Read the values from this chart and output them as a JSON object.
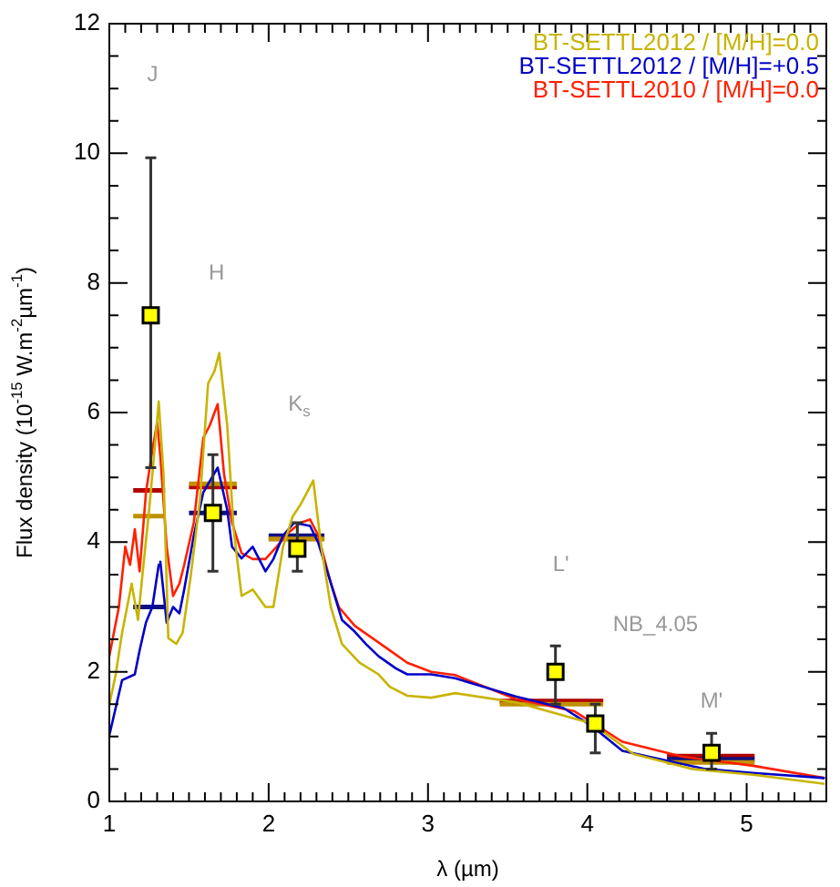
{
  "chart_data": {
    "type": "line",
    "xlabel": "λ (µm)",
    "ylabel": "Flux density (10$^{-15}$ W.m$^{-2}$µm$^{-1}$)",
    "xlim": [
      1,
      5.5
    ],
    "ylim": [
      0,
      12
    ],
    "xticks": [
      1,
      {
        "value": 1.1,
        "label": null
      },
      {
        "value": 1.2,
        "label": null
      },
      {
        "value": 1.3,
        "label": null
      },
      {
        "value": 1.4,
        "label": null
      },
      {
        "value": 1.5,
        "label": null
      },
      {
        "value": 1.6,
        "label": null
      },
      {
        "value": 1.7,
        "label": null
      },
      {
        "value": 1.8,
        "label": null
      },
      {
        "value": 1.9,
        "label": null
      },
      2,
      {
        "value": 2.1,
        "label": null
      },
      {
        "value": 2.2,
        "label": null
      },
      {
        "value": 2.3,
        "label": null
      },
      {
        "value": 2.4,
        "label": null
      },
      {
        "value": 2.5,
        "label": null
      },
      {
        "value": 2.6,
        "label": null
      },
      {
        "value": 2.7,
        "label": null
      },
      {
        "value": 2.8,
        "label": null
      },
      {
        "value": 2.9,
        "label": null
      },
      3,
      {
        "value": 3.1,
        "label": null
      },
      {
        "value": 3.2,
        "label": null
      },
      {
        "value": 3.3,
        "label": null
      },
      {
        "value": 3.4,
        "label": null
      },
      {
        "value": 3.5,
        "label": null
      },
      {
        "value": 3.6,
        "label": null
      },
      {
        "value": 3.7,
        "label": null
      },
      {
        "value": 3.8,
        "label": null
      },
      {
        "value": 3.9,
        "label": null
      },
      4,
      {
        "value": 4.1,
        "label": null
      },
      {
        "value": 4.2,
        "label": null
      },
      {
        "value": 4.3,
        "label": null
      },
      {
        "value": 4.4,
        "label": null
      },
      {
        "value": 4.5,
        "label": null
      },
      {
        "value": 4.6,
        "label": null
      },
      {
        "value": 4.7,
        "label": null
      },
      {
        "value": 4.8,
        "label": null
      },
      {
        "value": 4.9,
        "label": null
      },
      5,
      {
        "value": 5.1,
        "label": null
      },
      {
        "value": 5.2,
        "label": null
      },
      {
        "value": 5.3,
        "label": null
      },
      {
        "value": 5.4,
        "label": null
      }
    ],
    "yticks": [
      0,
      {
        "value": 0.5,
        "label": null
      },
      {
        "value": 1,
        "label": null
      },
      {
        "value": 1.5,
        "label": null
      },
      2,
      {
        "value": 2.5,
        "label": null
      },
      {
        "value": 3,
        "label": null
      },
      {
        "value": 3.5,
        "label": null
      },
      4,
      {
        "value": 4.5,
        "label": null
      },
      {
        "value": 5,
        "label": null
      },
      {
        "value": 5.5,
        "label": null
      },
      6,
      {
        "value": 6.5,
        "label": null
      },
      {
        "value": 7,
        "label": null
      },
      {
        "value": 7.5,
        "label": null
      },
      8,
      {
        "value": 8.5,
        "label": null
      },
      {
        "value": 9,
        "label": null
      },
      {
        "value": 9.5,
        "label": null
      },
      10,
      {
        "value": 10.5,
        "label": null
      },
      {
        "value": 11,
        "label": null
      },
      {
        "value": 11.5,
        "label": null
      },
      12
    ],
    "grid": false,
    "legend": "top right",
    "series": [
      {
        "name": "BT-SETTL2012 / [M/H]=0.0",
        "color": "#c8b400",
        "x": [
          1.0,
          1.04,
          1.08,
          1.14,
          1.18,
          1.21,
          1.25,
          1.29,
          1.31,
          1.34,
          1.37,
          1.42,
          1.46,
          1.51,
          1.57,
          1.62,
          1.66,
          1.69,
          1.74,
          1.78,
          1.83,
          1.9,
          1.98,
          2.03,
          2.09,
          2.15,
          2.2,
          2.28,
          2.33,
          2.39,
          2.46,
          2.57,
          2.69,
          2.76,
          2.87,
          3.02,
          3.17,
          3.55,
          4.03,
          4.29,
          4.66,
          5.04,
          5.49
        ],
        "values": [
          1.49,
          1.96,
          2.6,
          3.36,
          2.8,
          3.55,
          4.5,
          5.6,
          6.17,
          5.05,
          2.52,
          2.43,
          2.6,
          3.46,
          4.68,
          6.45,
          6.64,
          6.92,
          5.8,
          4.2,
          3.17,
          3.27,
          3.0,
          3.0,
          3.93,
          4.39,
          4.58,
          4.95,
          3.93,
          3.0,
          2.43,
          2.14,
          1.96,
          1.77,
          1.63,
          1.6,
          1.67,
          1.53,
          1.2,
          0.73,
          0.5,
          0.41,
          0.27
        ]
      },
      {
        "name": "BT-SETTL2012 / [M/H]=+0.5",
        "color": "#0000c8",
        "x": [
          1.0,
          1.08,
          1.16,
          1.19,
          1.23,
          1.27,
          1.31,
          1.32,
          1.36,
          1.4,
          1.44,
          1.47,
          1.53,
          1.59,
          1.68,
          1.74,
          1.77,
          1.83,
          1.9,
          1.98,
          2.03,
          2.09,
          2.16,
          2.26,
          2.31,
          2.39,
          2.46,
          2.54,
          2.61,
          2.69,
          2.8,
          2.87,
          3.02,
          3.17,
          3.55,
          3.85,
          4.03,
          4.22,
          4.48,
          4.74,
          5.04,
          5.49
        ],
        "values": [
          1.02,
          1.87,
          1.96,
          2.33,
          2.76,
          3.0,
          3.65,
          3.7,
          2.76,
          3.0,
          2.9,
          3.27,
          4.1,
          4.77,
          5.15,
          4.5,
          3.93,
          3.75,
          3.93,
          3.55,
          3.74,
          4.1,
          4.3,
          4.25,
          4.0,
          3.37,
          2.8,
          2.62,
          2.43,
          2.24,
          2.05,
          1.96,
          1.96,
          1.9,
          1.62,
          1.44,
          1.16,
          0.78,
          0.64,
          0.5,
          0.44,
          0.36
        ]
      },
      {
        "name": "BT-SETTL2010 / [M/H]=0.0",
        "color": "#ff2000",
        "x": [
          1.0,
          1.06,
          1.1,
          1.13,
          1.16,
          1.19,
          1.23,
          1.27,
          1.3,
          1.32,
          1.36,
          1.4,
          1.44,
          1.47,
          1.53,
          1.59,
          1.63,
          1.68,
          1.72,
          1.77,
          1.83,
          1.9,
          1.98,
          2.05,
          2.13,
          2.2,
          2.26,
          2.31,
          2.39,
          2.44,
          2.54,
          2.65,
          2.76,
          2.87,
          3.02,
          3.17,
          3.55,
          3.92,
          4.22,
          4.6,
          5.04,
          5.49
        ],
        "values": [
          2.24,
          3.0,
          3.93,
          3.65,
          4.2,
          3.55,
          4.77,
          5.42,
          5.84,
          5.33,
          3.93,
          3.17,
          3.36,
          3.65,
          4.3,
          5.61,
          5.8,
          6.13,
          5.05,
          4.3,
          3.83,
          3.74,
          3.74,
          3.93,
          4.16,
          4.3,
          4.35,
          4.11,
          3.37,
          3.0,
          2.71,
          2.52,
          2.33,
          2.14,
          2.0,
          1.95,
          1.58,
          1.39,
          0.92,
          0.69,
          0.55,
          0.36
        ]
      },
      {
        "color": "#c09000",
        "x": [
          1.15,
          1.35,
          1.4,
          1.5,
          1.8,
          1.9,
          2.0,
          2.35,
          2.4,
          3.45,
          4.1,
          4.2,
          4.5,
          5.05
        ],
        "values": [
          4.4,
          4.4,
          null,
          4.9,
          4.9,
          null,
          4.05,
          4.05,
          null,
          1.5,
          1.5,
          null,
          0.6,
          0.6
        ]
      },
      {
        "color": "#101080",
        "x": [
          1.15,
          1.35,
          1.4,
          1.5,
          1.8,
          1.9,
          2.0,
          2.35,
          2.4,
          3.45,
          4.1,
          4.2,
          4.5,
          5.05
        ],
        "values": [
          3.0,
          3.0,
          null,
          4.45,
          4.45,
          null,
          4.1,
          4.1,
          null,
          null,
          null,
          null,
          0.65,
          0.65
        ]
      },
      {
        "color": "#b00000",
        "x": [
          1.15,
          1.35,
          1.4,
          1.5,
          1.8,
          1.9,
          2.0,
          2.35,
          2.4,
          3.45,
          4.1,
          4.2,
          4.5,
          5.05
        ],
        "values": [
          4.8,
          4.8,
          null,
          4.85,
          4.85,
          null,
          4.05,
          4.05,
          null,
          1.55,
          1.55,
          null,
          0.7,
          0.7
        ]
      },
      {
        "type": "scatter",
        "color": "#ffff00",
        "marker": "square",
        "x": [
          1.26,
          1.65,
          2.18,
          3.8,
          4.05,
          4.78
        ],
        "values": [
          7.5,
          4.45,
          3.9,
          2.0,
          1.2,
          0.75
        ],
        "errors": [
          [
            5.15,
            9.93
          ],
          [
            3.55,
            5.35
          ],
          [
            3.55,
            4.3
          ],
          [
            1.5,
            2.4
          ],
          [
            0.75,
            1.5
          ],
          [
            0.5,
            1.05
          ]
        ]
      }
    ],
    "annotations": [
      "J",
      "H",
      "K$_{s}$",
      "L'",
      "NB_4.05",
      "M'"
    ]
  }
}
